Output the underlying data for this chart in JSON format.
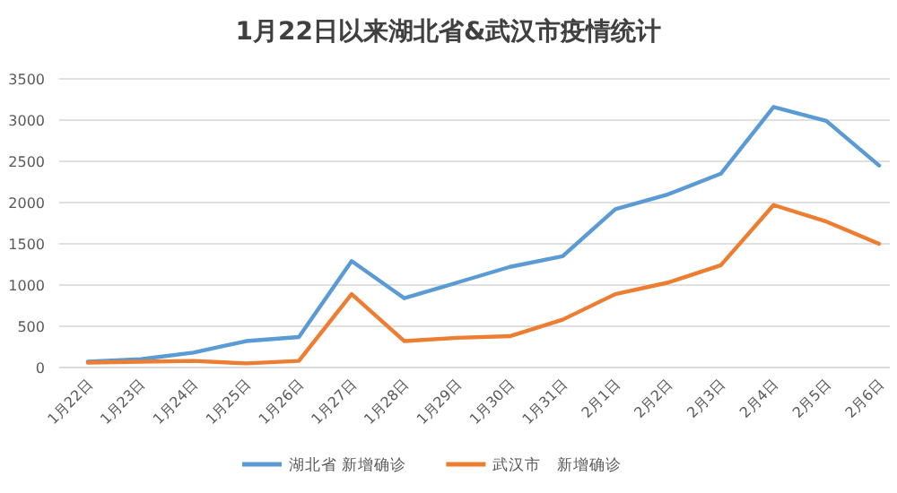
{
  "chart_data": {
    "type": "line",
    "title": "1月22日以来湖北省&武汉市疫情统计",
    "categories": [
      "1月22日",
      "1月23日",
      "1月24日",
      "1月25日",
      "1月26日",
      "1月27日",
      "1月28日",
      "1月29日",
      "1月30日",
      "1月31日",
      "2月1日",
      "2月2日",
      "2月3日",
      "2月4日",
      "2月5日",
      "2月6日"
    ],
    "series": [
      {
        "name": "湖北省 新增确诊",
        "color": "#5b9bd5",
        "values": [
          70,
          100,
          180,
          320,
          370,
          1290,
          840,
          1030,
          1220,
          1350,
          1920,
          2100,
          2350,
          3160,
          2990,
          2450
        ]
      },
      {
        "name": "武汉市　新增确诊",
        "color": "#ed7d31",
        "values": [
          60,
          70,
          80,
          50,
          80,
          890,
          320,
          360,
          380,
          580,
          890,
          1030,
          1240,
          1970,
          1770,
          1500
        ]
      }
    ],
    "ylim": [
      0,
      3500
    ],
    "yticks": [
      0,
      500,
      1000,
      1500,
      2000,
      2500,
      3000,
      3500
    ],
    "grid": "y",
    "legend": "bottom",
    "marker": "none",
    "line_style": "solid"
  }
}
